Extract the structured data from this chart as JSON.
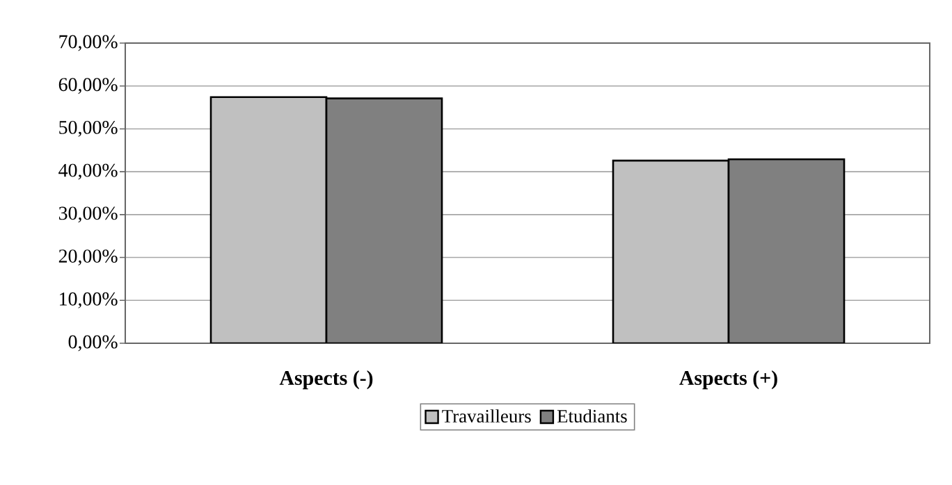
{
  "chart_data": {
    "type": "bar",
    "categories": [
      "Aspects (-)",
      "Aspects (+)"
    ],
    "series": [
      {
        "name": "Travailleurs",
        "color": "#c0c0c0",
        "values": [
          57.4,
          42.6
        ]
      },
      {
        "name": "Etudiants",
        "color": "#808080",
        "values": [
          57.1,
          42.9
        ]
      }
    ],
    "ylim": [
      0,
      70
    ],
    "yticks": [
      {
        "value": 0,
        "label": "0,00%"
      },
      {
        "value": 10,
        "label": "10,00%"
      },
      {
        "value": 20,
        "label": "20,00%"
      },
      {
        "value": 30,
        "label": "30,00%"
      },
      {
        "value": 40,
        "label": "40,00%"
      },
      {
        "value": 50,
        "label": "50,00%"
      },
      {
        "value": 60,
        "label": "60,00%"
      },
      {
        "value": 70,
        "label": "70,00%"
      }
    ],
    "grid": "y",
    "legend": "bottom"
  }
}
